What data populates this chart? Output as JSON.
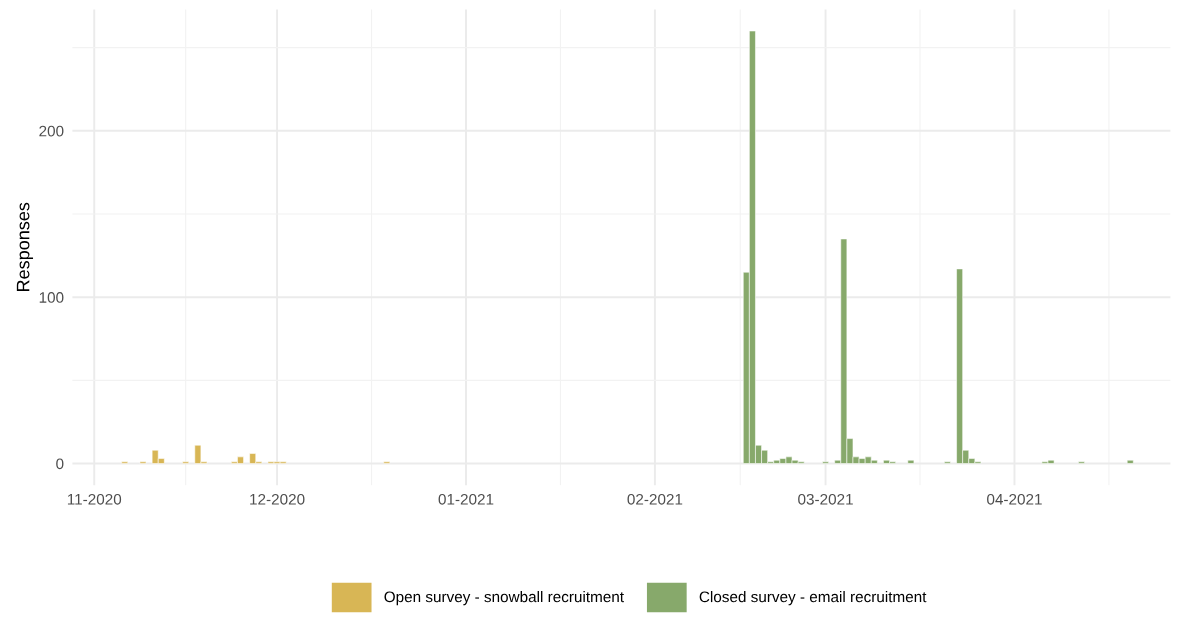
{
  "chart_data": {
    "type": "bar",
    "ylabel": "Responses",
    "series": [
      {
        "name": "Open survey - snowball recruitment",
        "color": "#d8b655",
        "x": [
          "2020-11-06",
          "2020-11-09",
          "2020-11-11",
          "2020-11-12",
          "2020-11-16",
          "2020-11-18",
          "2020-11-19",
          "2020-11-24",
          "2020-11-25",
          "2020-11-27",
          "2020-11-28",
          "2020-11-30",
          "2020-12-01",
          "2020-12-02",
          "2020-12-19"
        ],
        "values": [
          1,
          1,
          8,
          3,
          1,
          11,
          1,
          1,
          4,
          6,
          1,
          1,
          1,
          1,
          1
        ]
      },
      {
        "name": "Closed survey - email recruitment",
        "color": "#87a96b",
        "x": [
          "2021-02-16",
          "2021-02-17",
          "2021-02-18",
          "2021-02-19",
          "2021-02-20",
          "2021-02-21",
          "2021-02-22",
          "2021-02-23",
          "2021-02-24",
          "2021-02-25",
          "2021-03-01",
          "2021-03-03",
          "2021-03-04",
          "2021-03-05",
          "2021-03-06",
          "2021-03-07",
          "2021-03-08",
          "2021-03-09",
          "2021-03-11",
          "2021-03-12",
          "2021-03-15",
          "2021-03-21",
          "2021-03-23",
          "2021-03-24",
          "2021-03-25",
          "2021-03-26",
          "2021-04-06",
          "2021-04-07",
          "2021-04-12",
          "2021-04-20"
        ],
        "values": [
          115,
          260,
          11,
          8,
          1,
          2,
          3,
          4,
          2,
          1,
          1,
          2,
          135,
          15,
          4,
          3,
          4,
          2,
          2,
          1,
          2,
          1,
          117,
          8,
          3,
          1,
          1,
          2,
          1,
          2
        ]
      }
    ],
    "xlim": [
      "2020-10-28T10:00",
      "2021-04-26T14:00"
    ],
    "xticks": [
      {
        "value": "2020-11-01",
        "label": "11-2020"
      },
      {
        "value": "2020-12-01",
        "label": "12-2020"
      },
      {
        "value": "2021-01-01",
        "label": "01-2021"
      },
      {
        "value": "2021-02-01",
        "label": "02-2021"
      },
      {
        "value": "2021-03-01",
        "label": "03-2021"
      },
      {
        "value": "2021-04-01",
        "label": "04-2021"
      }
    ],
    "ylim": [
      -13,
      273
    ],
    "yticks": [
      0,
      100,
      200
    ],
    "grid": true,
    "legend": "bottom"
  }
}
